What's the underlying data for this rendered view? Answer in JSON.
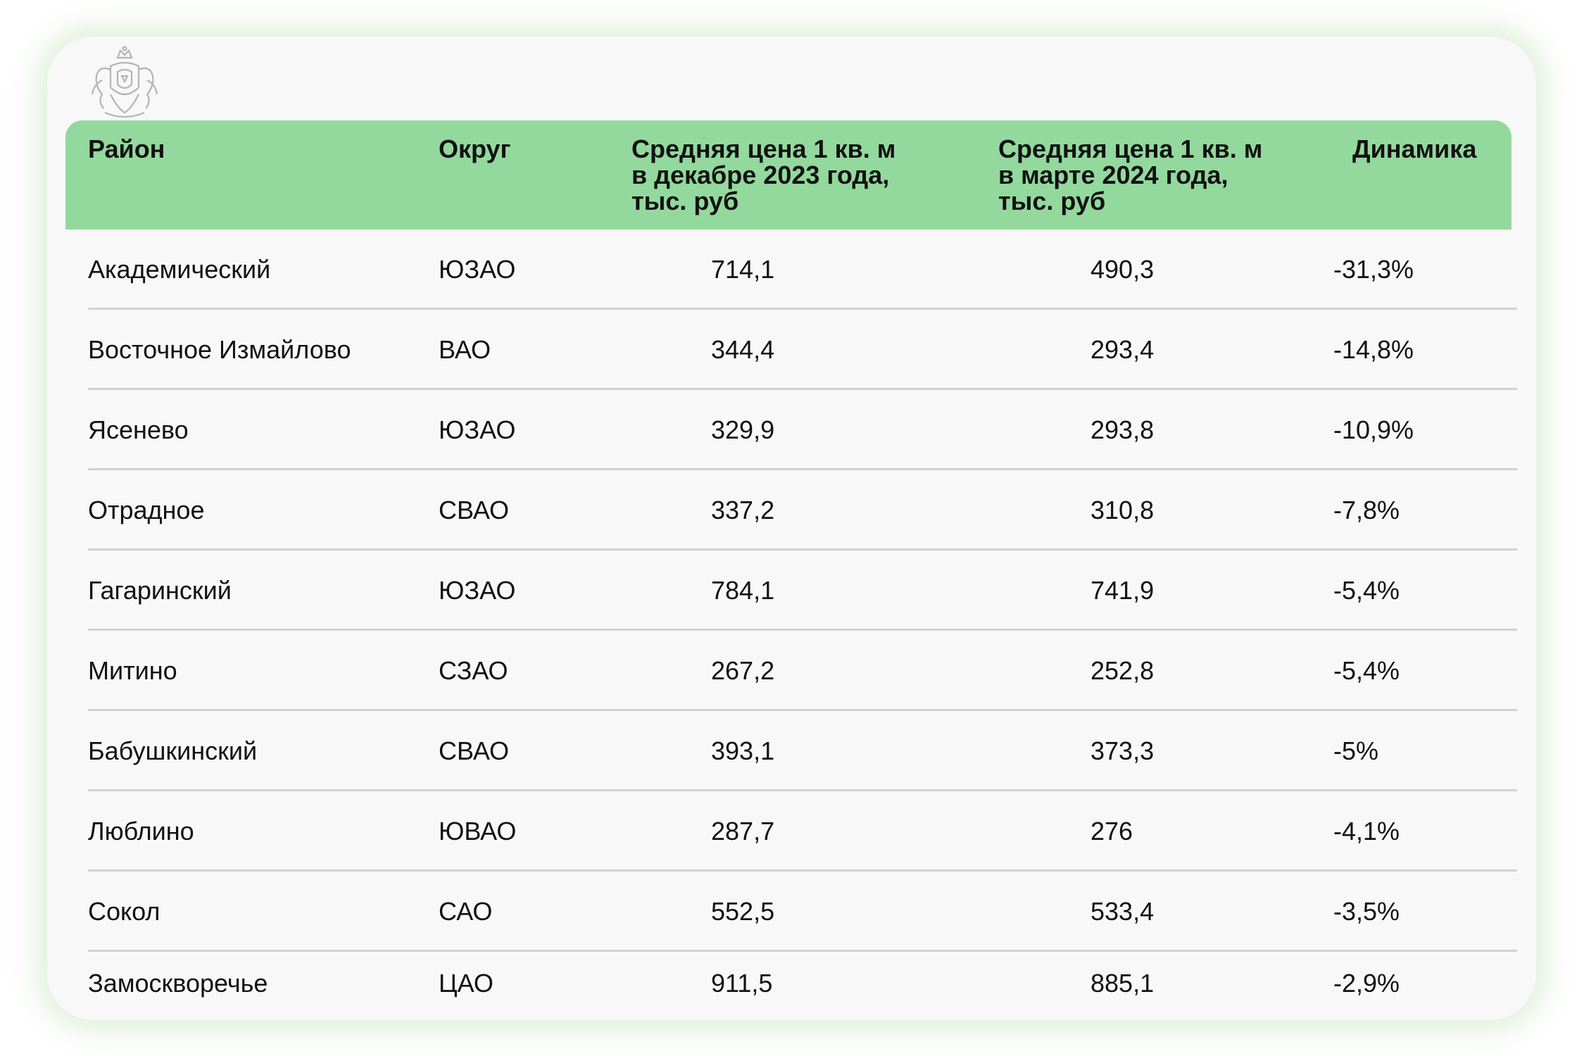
{
  "table": {
    "headers": [
      "Район",
      "Округ",
      "Средняя цена 1 кв. м\nв декабре 2023 года,\nтыс. руб",
      "Средняя цена 1 кв. м\nв марте 2024 года,\nтыс. руб",
      "Динамика"
    ],
    "rows": [
      {
        "district": "Академический",
        "okrug": "ЮЗАО",
        "dec": "714,1",
        "mar": "490,3",
        "dyn": "-31,3%"
      },
      {
        "district": "Восточное Измайлово",
        "okrug": "ВАО",
        "dec": "344,4",
        "mar": "293,4",
        "dyn": "-14,8%"
      },
      {
        "district": "Ясенево",
        "okrug": "ЮЗАО",
        "dec": "329,9",
        "mar": "293,8",
        "dyn": "-10,9%"
      },
      {
        "district": "Отрадное",
        "okrug": "СВАО",
        "dec": "337,2",
        "mar": "310,8",
        "dyn": "-7,8%"
      },
      {
        "district": "Гагаринский",
        "okrug": "ЮЗАО",
        "dec": "784,1",
        "mar": "741,9",
        "dyn": "-5,4%"
      },
      {
        "district": "Митино",
        "okrug": "СЗАО",
        "dec": "267,2",
        "mar": "252,8",
        "dyn": "-5,4%"
      },
      {
        "district": "Бабушкинский",
        "okrug": "СВАО",
        "dec": "393,1",
        "mar": "373,3",
        "dyn": "-5%"
      },
      {
        "district": "Люблино",
        "okrug": "ЮВАО",
        "dec": "287,7",
        "mar": "276",
        "dyn": "-4,1%"
      },
      {
        "district": "Сокол",
        "okrug": "САО",
        "dec": "552,5",
        "mar": "533,4",
        "dyn": "-3,5%"
      },
      {
        "district": "Замоскворечье",
        "okrug": "ЦАО",
        "dec": "911,5",
        "mar": "885,1",
        "dyn": "-2,9%"
      }
    ]
  },
  "logo": {
    "icon": "coat-of-arms-icon"
  },
  "colors": {
    "header_bg": "#93d99d",
    "card_bg": "#f8f8f8",
    "divider": "#d2d2d2",
    "glow": "#a0d296"
  }
}
